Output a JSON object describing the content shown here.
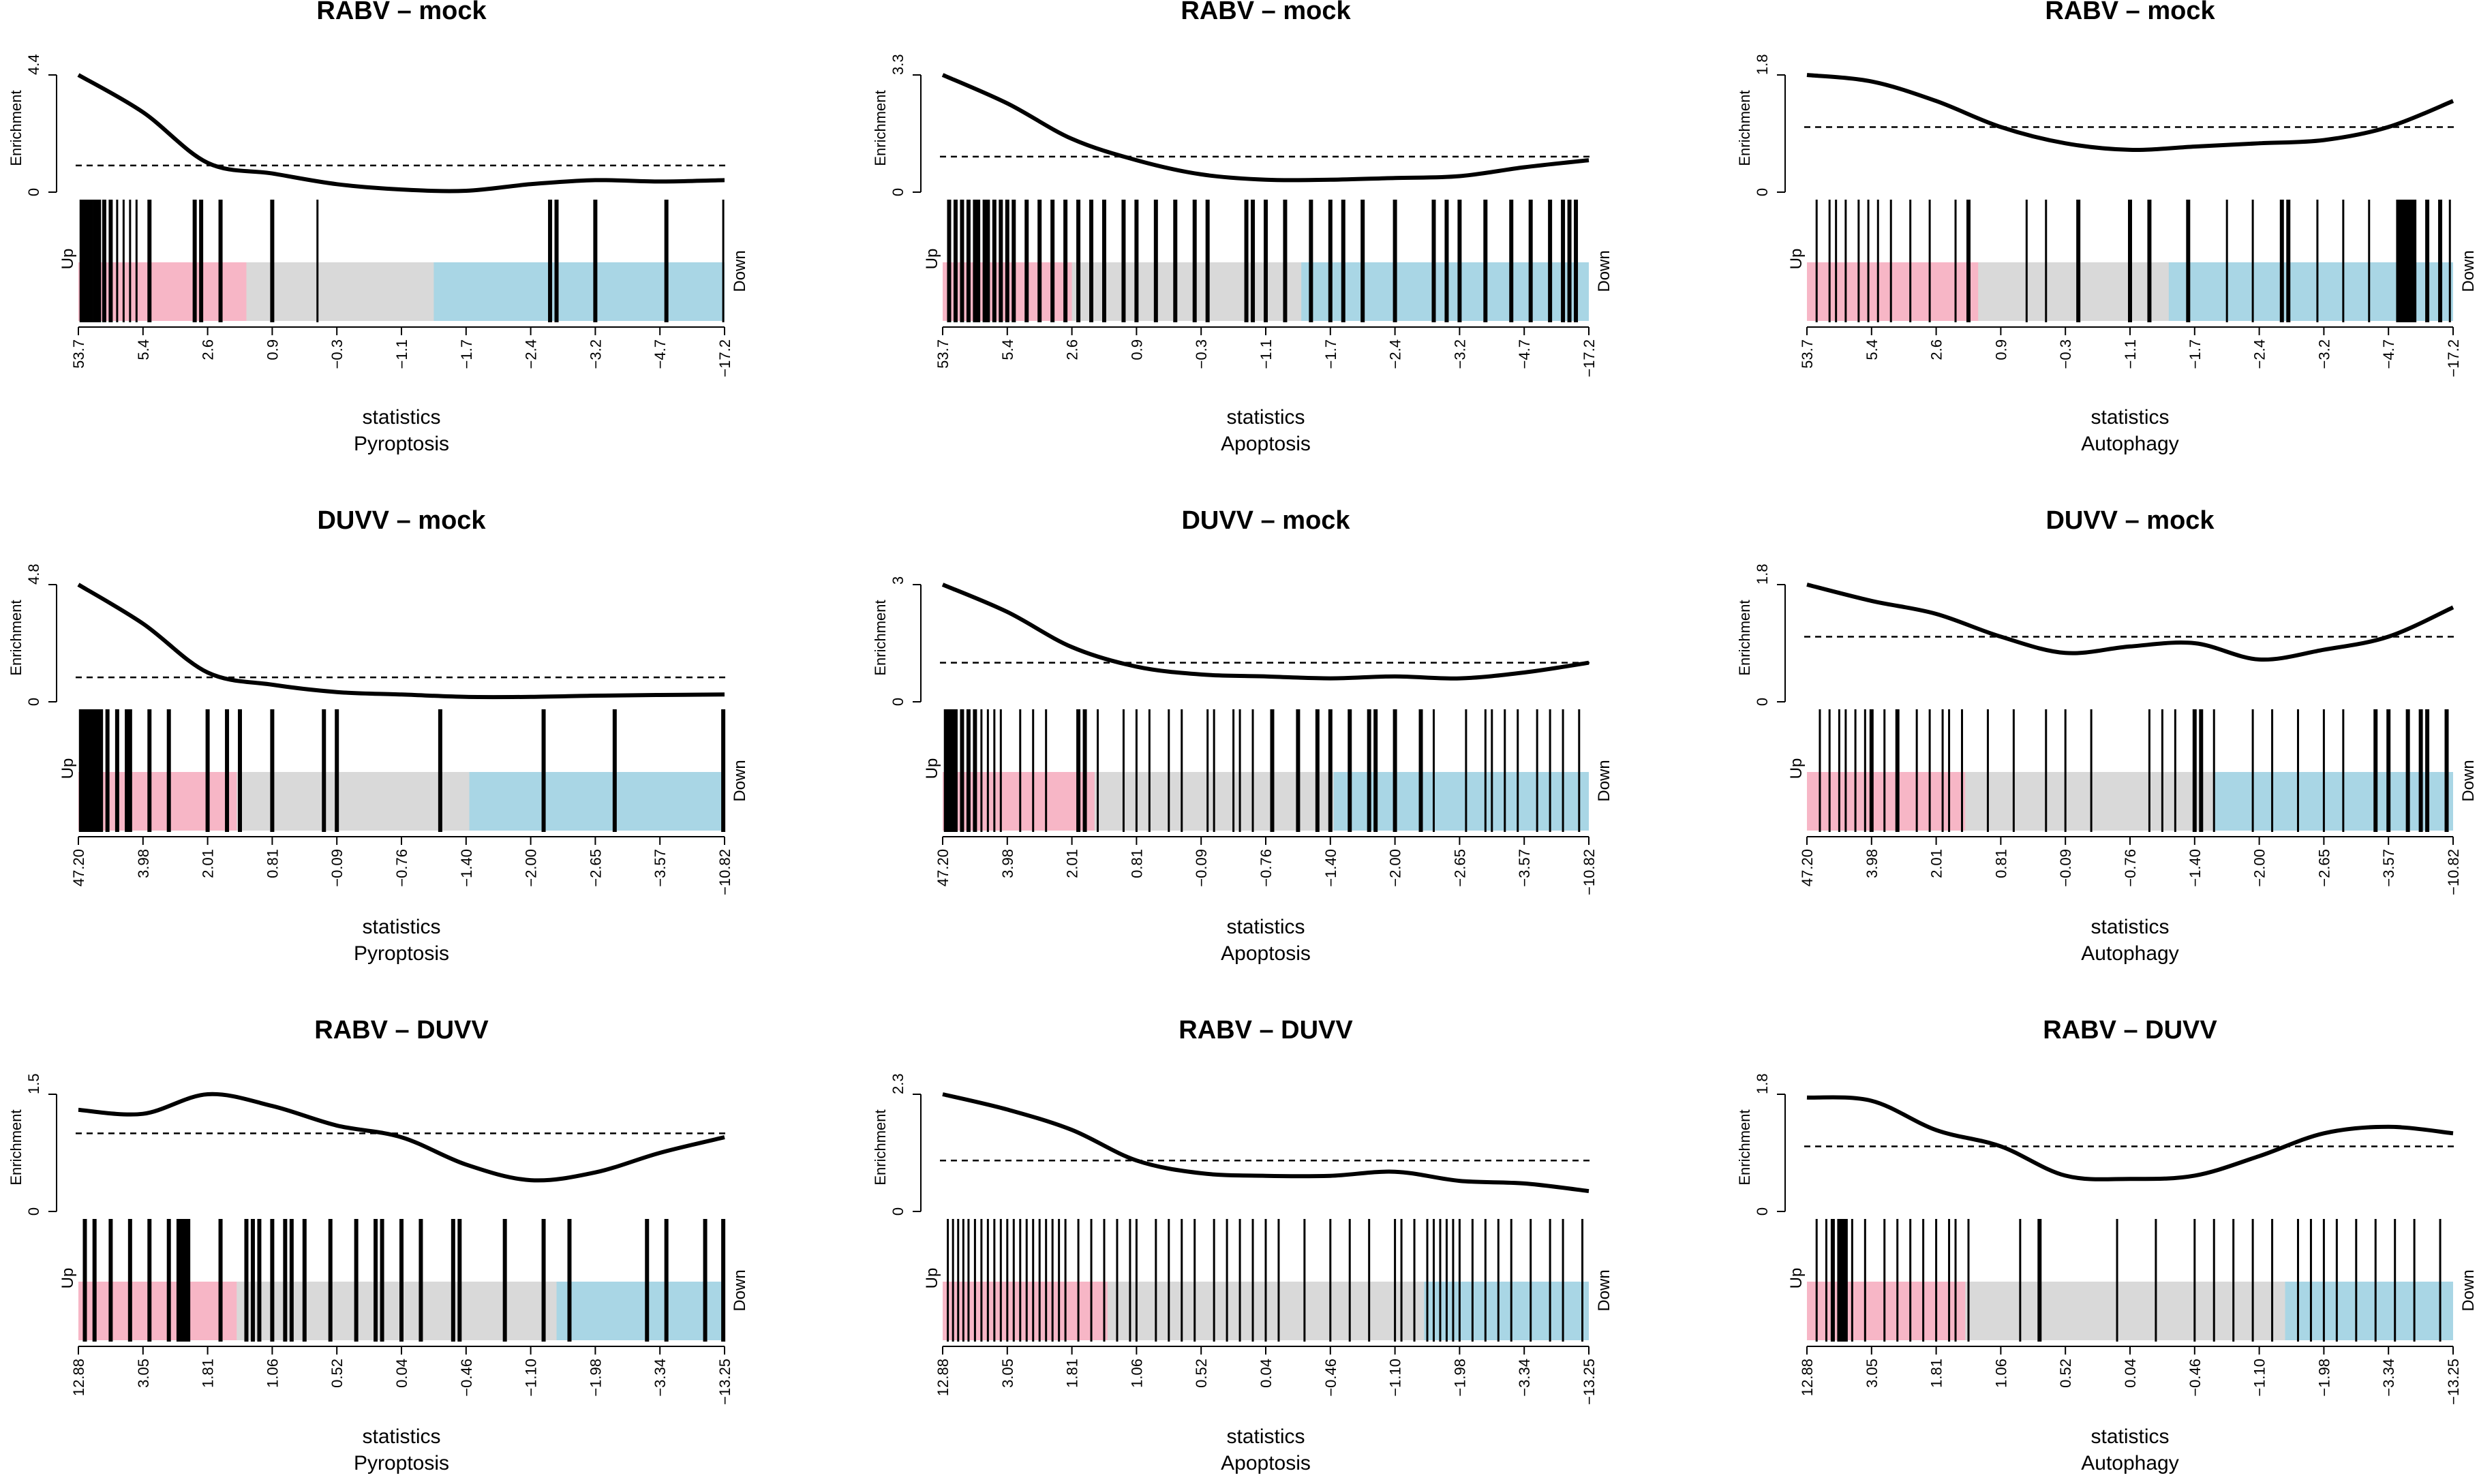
{
  "figure": {
    "background": "#ffffff",
    "up_color": "#f7b6c6",
    "neutral_color": "#d9d9d9",
    "down_color": "#a9d6e5",
    "curve_color": "#000000"
  },
  "chart_data": [
    {
      "type": "barcode-enrichment",
      "title": "RABV – mock",
      "ylabel": "Enrichment",
      "ymax": "4.4",
      "ymin": "0",
      "ylim": [
        0,
        4.4
      ],
      "xlabel": "statistics",
      "gene_set": "Pyroptosis",
      "left_label": "Up",
      "right_label": "Down",
      "ticks": [
        "53.7",
        "5.4",
        "2.6",
        "0.9",
        "−0.3",
        "−1.1",
        "−1.7",
        "−2.4",
        "−3.2",
        "−4.7",
        "−17.2"
      ],
      "up_region": [
        0,
        0.26
      ],
      "down_region": [
        0.55,
        1
      ],
      "curve": [
        [
          0,
          4.4
        ],
        [
          0.1,
          3.0
        ],
        [
          0.2,
          1.1
        ],
        [
          0.3,
          0.7
        ],
        [
          0.4,
          0.3
        ],
        [
          0.5,
          0.1
        ],
        [
          0.6,
          0.05
        ],
        [
          0.7,
          0.3
        ],
        [
          0.8,
          0.45
        ],
        [
          0.9,
          0.4
        ],
        [
          1,
          0.45
        ]
      ],
      "threshold": 1.0,
      "rank_positions": [
        0.005,
        0.01,
        0.015,
        0.02,
        0.026,
        0.032,
        0.04,
        0.05,
        0.06,
        0.07,
        0.08,
        0.09,
        0.11,
        0.18,
        0.19,
        0.22,
        0.3,
        0.37,
        0.73,
        0.74,
        0.8,
        0.91,
        0.998
      ],
      "thick_positions": [
        0.005,
        0.01,
        0.015,
        0.02,
        0.026,
        0.032,
        0.04,
        0.05,
        0.11,
        0.18,
        0.19,
        0.22,
        0.3,
        0.73,
        0.74,
        0.8,
        0.91
      ]
    },
    {
      "type": "barcode-enrichment",
      "title": "RABV – mock",
      "ylabel": "Enrichment",
      "ymax": "3.3",
      "ymin": "0",
      "ylim": [
        0,
        3.3
      ],
      "xlabel": "statistics",
      "gene_set": "Apoptosis",
      "left_label": "Up",
      "right_label": "Down",
      "ticks": [
        "53.7",
        "5.4",
        "2.6",
        "0.9",
        "−0.3",
        "−1.1",
        "−1.7",
        "−2.4",
        "−3.2",
        "−4.7",
        "−17.2"
      ],
      "up_region": [
        0,
        0.2
      ],
      "down_region": [
        0.555,
        1
      ],
      "curve": [
        [
          0,
          3.3
        ],
        [
          0.1,
          2.5
        ],
        [
          0.2,
          1.5
        ],
        [
          0.3,
          0.9
        ],
        [
          0.4,
          0.5
        ],
        [
          0.5,
          0.35
        ],
        [
          0.6,
          0.35
        ],
        [
          0.7,
          0.4
        ],
        [
          0.8,
          0.45
        ],
        [
          0.9,
          0.7
        ],
        [
          1,
          0.9
        ]
      ],
      "threshold": 1.0,
      "rank_positions": [
        0.01,
        0.02,
        0.03,
        0.04,
        0.05,
        0.055,
        0.065,
        0.07,
        0.08,
        0.09,
        0.1,
        0.11,
        0.13,
        0.15,
        0.17,
        0.19,
        0.21,
        0.23,
        0.25,
        0.28,
        0.3,
        0.33,
        0.36,
        0.39,
        0.41,
        0.47,
        0.48,
        0.5,
        0.53,
        0.57,
        0.6,
        0.62,
        0.65,
        0.7,
        0.76,
        0.78,
        0.8,
        0.84,
        0.88,
        0.91,
        0.94,
        0.96,
        0.97,
        0.98
      ],
      "thick_positions": [
        0.01,
        0.02,
        0.03,
        0.04,
        0.05,
        0.055,
        0.065,
        0.07,
        0.08,
        0.09,
        0.1,
        0.11,
        0.13,
        0.15,
        0.17,
        0.19,
        0.21,
        0.23,
        0.25,
        0.28,
        0.3,
        0.33,
        0.36,
        0.39,
        0.41,
        0.47,
        0.48,
        0.5,
        0.53,
        0.57,
        0.6,
        0.62,
        0.65,
        0.7,
        0.76,
        0.78,
        0.8,
        0.84,
        0.88,
        0.91,
        0.94,
        0.96,
        0.97,
        0.98
      ]
    },
    {
      "type": "barcode-enrichment",
      "title": "RABV – mock",
      "ylabel": "Enrichment",
      "ymax": "1.8",
      "ymin": "0",
      "ylim": [
        0,
        1.8
      ],
      "xlabel": "statistics",
      "gene_set": "Autophagy",
      "left_label": "Up",
      "right_label": "Down",
      "ticks": [
        "53.7",
        "5.4",
        "2.6",
        "0.9",
        "−0.3",
        "−1.1",
        "−1.7",
        "−2.4",
        "−3.2",
        "−4.7",
        "−17.2"
      ],
      "up_region": [
        0,
        0.265
      ],
      "down_region": [
        0.56,
        1
      ],
      "curve": [
        [
          0,
          1.8
        ],
        [
          0.1,
          1.7
        ],
        [
          0.2,
          1.4
        ],
        [
          0.3,
          1.0
        ],
        [
          0.4,
          0.75
        ],
        [
          0.5,
          0.65
        ],
        [
          0.6,
          0.7
        ],
        [
          0.7,
          0.75
        ],
        [
          0.8,
          0.8
        ],
        [
          0.9,
          1.0
        ],
        [
          1,
          1.4
        ]
      ],
      "threshold": 1.0,
      "rank_positions": [
        0.015,
        0.035,
        0.045,
        0.06,
        0.08,
        0.095,
        0.11,
        0.13,
        0.16,
        0.19,
        0.23,
        0.25,
        0.34,
        0.37,
        0.42,
        0.5,
        0.53,
        0.59,
        0.65,
        0.69,
        0.735,
        0.745,
        0.79,
        0.83,
        0.87,
        0.915,
        0.92,
        0.925,
        0.93,
        0.935,
        0.94,
        0.96,
        0.98,
        0.995
      ],
      "thick_positions": [
        0.09,
        0.25,
        0.42,
        0.5,
        0.53,
        0.59,
        0.735,
        0.745,
        0.915,
        0.92,
        0.925,
        0.93,
        0.935,
        0.94,
        0.96,
        0.98
      ]
    },
    {
      "type": "barcode-enrichment",
      "title": "DUVV – mock",
      "ylabel": "Enrichment",
      "ymax": "4.8",
      "ymin": "0",
      "ylim": [
        0,
        4.8
      ],
      "xlabel": "statistics",
      "gene_set": "Pyroptosis",
      "left_label": "Up",
      "right_label": "Down",
      "ticks": [
        "47.20",
        "3.98",
        "2.01",
        "0.81",
        "−0.09",
        "−0.76",
        "−1.40",
        "−2.00",
        "−2.65",
        "−3.57",
        "−10.82"
      ],
      "up_region": [
        0,
        0.245
      ],
      "down_region": [
        0.605,
        1
      ],
      "curve": [
        [
          0,
          4.8
        ],
        [
          0.1,
          3.2
        ],
        [
          0.2,
          1.2
        ],
        [
          0.3,
          0.7
        ],
        [
          0.4,
          0.4
        ],
        [
          0.5,
          0.3
        ],
        [
          0.6,
          0.2
        ],
        [
          0.7,
          0.2
        ],
        [
          0.8,
          0.25
        ],
        [
          0.9,
          0.28
        ],
        [
          1,
          0.3
        ]
      ],
      "threshold": 1.0,
      "rank_positions": [
        0.004,
        0.008,
        0.012,
        0.016,
        0.02,
        0.025,
        0.03,
        0.035,
        0.045,
        0.06,
        0.075,
        0.08,
        0.11,
        0.14,
        0.2,
        0.23,
        0.25,
        0.3,
        0.38,
        0.4,
        0.56,
        0.72,
        0.83,
        0.998
      ],
      "thick_positions": [
        0.004,
        0.008,
        0.012,
        0.016,
        0.02,
        0.025,
        0.03,
        0.035,
        0.045,
        0.06,
        0.075,
        0.08,
        0.11,
        0.14,
        0.2,
        0.23,
        0.25,
        0.3,
        0.38,
        0.4,
        0.56,
        0.72,
        0.83,
        0.998
      ]
    },
    {
      "type": "barcode-enrichment",
      "title": "DUVV – mock",
      "ylabel": "Enrichment",
      "ymax": "3",
      "ymin": "0",
      "ylim": [
        0,
        3
      ],
      "xlabel": "statistics",
      "gene_set": "Apoptosis",
      "left_label": "Up",
      "right_label": "Down",
      "ticks": [
        "47.20",
        "3.98",
        "2.01",
        "0.81",
        "−0.09",
        "−0.76",
        "−1.40",
        "−2.00",
        "−2.65",
        "−3.57",
        "−10.82"
      ],
      "up_region": [
        0,
        0.235
      ],
      "down_region": [
        0.605,
        1
      ],
      "curve": [
        [
          0,
          3.0
        ],
        [
          0.1,
          2.3
        ],
        [
          0.2,
          1.4
        ],
        [
          0.3,
          0.9
        ],
        [
          0.4,
          0.7
        ],
        [
          0.5,
          0.65
        ],
        [
          0.6,
          0.6
        ],
        [
          0.7,
          0.65
        ],
        [
          0.8,
          0.6
        ],
        [
          0.9,
          0.75
        ],
        [
          1,
          1.0
        ]
      ],
      "threshold": 1.0,
      "rank_positions": [
        0.005,
        0.01,
        0.015,
        0.02,
        0.03,
        0.04,
        0.05,
        0.06,
        0.07,
        0.08,
        0.09,
        0.12,
        0.14,
        0.16,
        0.21,
        0.22,
        0.24,
        0.28,
        0.3,
        0.32,
        0.35,
        0.37,
        0.41,
        0.42,
        0.45,
        0.46,
        0.48,
        0.51,
        0.55,
        0.58,
        0.6,
        0.63,
        0.66,
        0.67,
        0.7,
        0.74,
        0.76,
        0.81,
        0.84,
        0.85,
        0.87,
        0.89,
        0.92,
        0.94,
        0.96,
        0.985
      ],
      "thick_positions": [
        0.005,
        0.01,
        0.015,
        0.02,
        0.03,
        0.04,
        0.05,
        0.21,
        0.22,
        0.51,
        0.55,
        0.58,
        0.6,
        0.63,
        0.66,
        0.67,
        0.7,
        0.74
      ]
    },
    {
      "type": "barcode-enrichment",
      "title": "DUVV – mock",
      "ylabel": "Enrichment",
      "ymax": "1.8",
      "ymin": "0",
      "ylim": [
        0,
        1.8
      ],
      "xlabel": "statistics",
      "gene_set": "Autophagy",
      "left_label": "Up",
      "right_label": "Down",
      "ticks": [
        "47.20",
        "3.98",
        "2.01",
        "0.81",
        "−0.09",
        "−0.76",
        "−1.40",
        "−2.00",
        "−2.65",
        "−3.57",
        "−10.82"
      ],
      "up_region": [
        0,
        0.245
      ],
      "down_region": [
        0.63,
        1
      ],
      "curve": [
        [
          0,
          1.8
        ],
        [
          0.1,
          1.55
        ],
        [
          0.2,
          1.35
        ],
        [
          0.3,
          1.0
        ],
        [
          0.4,
          0.75
        ],
        [
          0.5,
          0.85
        ],
        [
          0.6,
          0.9
        ],
        [
          0.7,
          0.65
        ],
        [
          0.8,
          0.8
        ],
        [
          0.9,
          1.0
        ],
        [
          1,
          1.45
        ]
      ],
      "threshold": 1.0,
      "rank_positions": [
        0.02,
        0.035,
        0.05,
        0.06,
        0.075,
        0.09,
        0.1,
        0.12,
        0.14,
        0.17,
        0.19,
        0.21,
        0.22,
        0.24,
        0.28,
        0.32,
        0.37,
        0.4,
        0.44,
        0.53,
        0.55,
        0.57,
        0.6,
        0.61,
        0.63,
        0.69,
        0.72,
        0.76,
        0.8,
        0.83,
        0.88,
        0.9,
        0.93,
        0.95,
        0.96,
        0.99
      ],
      "thick_positions": [
        0.1,
        0.14,
        0.6,
        0.61,
        0.88,
        0.9,
        0.93,
        0.95,
        0.96,
        0.99
      ]
    },
    {
      "type": "barcode-enrichment",
      "title": "RABV – DUVV",
      "ylabel": "Enrichment",
      "ymax": "1.5",
      "ymin": "0",
      "ylim": [
        0,
        1.5
      ],
      "xlabel": "statistics",
      "gene_set": "Pyroptosis",
      "left_label": "Up",
      "right_label": "Down",
      "ticks": [
        "12.88",
        "3.05",
        "1.81",
        "1.06",
        "0.52",
        "0.04",
        "−0.46",
        "−1.10",
        "−1.98",
        "−3.34",
        "−13.25"
      ],
      "up_region": [
        0,
        0.245
      ],
      "down_region": [
        0.74,
        1
      ],
      "curve": [
        [
          0,
          1.3
        ],
        [
          0.1,
          1.25
        ],
        [
          0.2,
          1.5
        ],
        [
          0.3,
          1.35
        ],
        [
          0.4,
          1.1
        ],
        [
          0.5,
          0.95
        ],
        [
          0.6,
          0.6
        ],
        [
          0.7,
          0.4
        ],
        [
          0.8,
          0.5
        ],
        [
          0.9,
          0.75
        ],
        [
          1,
          0.95
        ]
      ],
      "threshold": 1.0,
      "rank_positions": [
        0.01,
        0.025,
        0.05,
        0.08,
        0.11,
        0.14,
        0.155,
        0.16,
        0.165,
        0.17,
        0.22,
        0.26,
        0.27,
        0.28,
        0.3,
        0.32,
        0.33,
        0.35,
        0.39,
        0.43,
        0.46,
        0.47,
        0.5,
        0.53,
        0.58,
        0.59,
        0.66,
        0.72,
        0.76,
        0.88,
        0.91,
        0.97,
        0.998
      ],
      "thick_positions": [
        0.01,
        0.025,
        0.05,
        0.08,
        0.11,
        0.14,
        0.155,
        0.16,
        0.165,
        0.17,
        0.22,
        0.26,
        0.27,
        0.28,
        0.3,
        0.32,
        0.33,
        0.35,
        0.39,
        0.43,
        0.46,
        0.47,
        0.5,
        0.53,
        0.58,
        0.59,
        0.66,
        0.72,
        0.76,
        0.88,
        0.91,
        0.97,
        0.998
      ]
    },
    {
      "type": "barcode-enrichment",
      "title": "RABV – DUVV",
      "ylabel": "Enrichment",
      "ymax": "2.3",
      "ymin": "0",
      "ylim": [
        0,
        2.3
      ],
      "xlabel": "statistics",
      "gene_set": "Apoptosis",
      "left_label": "Up",
      "right_label": "Down",
      "ticks": [
        "12.88",
        "3.05",
        "1.81",
        "1.06",
        "0.52",
        "0.04",
        "−0.46",
        "−1.10",
        "−1.98",
        "−3.34",
        "−13.25"
      ],
      "up_region": [
        0,
        0.255
      ],
      "down_region": [
        0.745,
        1
      ],
      "curve": [
        [
          0,
          2.3
        ],
        [
          0.1,
          2.0
        ],
        [
          0.2,
          1.6
        ],
        [
          0.3,
          1.0
        ],
        [
          0.4,
          0.75
        ],
        [
          0.5,
          0.7
        ],
        [
          0.6,
          0.7
        ],
        [
          0.7,
          0.78
        ],
        [
          0.8,
          0.6
        ],
        [
          0.9,
          0.55
        ],
        [
          1,
          0.4
        ]
      ],
      "threshold": 1.0,
      "rank_positions": [
        0.008,
        0.016,
        0.024,
        0.032,
        0.04,
        0.05,
        0.06,
        0.07,
        0.08,
        0.09,
        0.1,
        0.11,
        0.12,
        0.13,
        0.14,
        0.15,
        0.16,
        0.17,
        0.18,
        0.19,
        0.21,
        0.23,
        0.25,
        0.27,
        0.29,
        0.3,
        0.33,
        0.35,
        0.37,
        0.39,
        0.42,
        0.44,
        0.46,
        0.48,
        0.5,
        0.52,
        0.56,
        0.6,
        0.63,
        0.66,
        0.7,
        0.71,
        0.73,
        0.75,
        0.76,
        0.77,
        0.78,
        0.79,
        0.8,
        0.82,
        0.84,
        0.86,
        0.88,
        0.91,
        0.94,
        0.96,
        0.99
      ],
      "thick_positions": []
    },
    {
      "type": "barcode-enrichment",
      "title": "RABV – DUVV",
      "ylabel": "Enrichment",
      "ymax": "1.8",
      "ymin": "0",
      "ylim": [
        0,
        1.8
      ],
      "xlabel": "statistics",
      "gene_set": "Autophagy",
      "left_label": "Up",
      "right_label": "Down",
      "ticks": [
        "12.88",
        "3.05",
        "1.81",
        "1.06",
        "0.52",
        "0.04",
        "−0.46",
        "−1.10",
        "−1.98",
        "−3.34",
        "−13.25"
      ],
      "up_region": [
        0,
        0.245
      ],
      "down_region": [
        0.74,
        1
      ],
      "curve": [
        [
          0,
          1.75
        ],
        [
          0.1,
          1.7
        ],
        [
          0.2,
          1.25
        ],
        [
          0.3,
          1.0
        ],
        [
          0.4,
          0.55
        ],
        [
          0.5,
          0.5
        ],
        [
          0.6,
          0.55
        ],
        [
          0.7,
          0.85
        ],
        [
          0.8,
          1.2
        ],
        [
          0.9,
          1.3
        ],
        [
          1,
          1.2
        ]
      ],
      "threshold": 1.0,
      "rank_positions": [
        0.015,
        0.03,
        0.04,
        0.05,
        0.055,
        0.06,
        0.07,
        0.09,
        0.12,
        0.14,
        0.16,
        0.18,
        0.2,
        0.22,
        0.23,
        0.25,
        0.33,
        0.36,
        0.48,
        0.54,
        0.6,
        0.63,
        0.66,
        0.69,
        0.72,
        0.76,
        0.78,
        0.8,
        0.82,
        0.85,
        0.88,
        0.91,
        0.94,
        0.98
      ],
      "thick_positions": [
        0.04,
        0.05,
        0.055,
        0.06,
        0.36
      ]
    }
  ]
}
